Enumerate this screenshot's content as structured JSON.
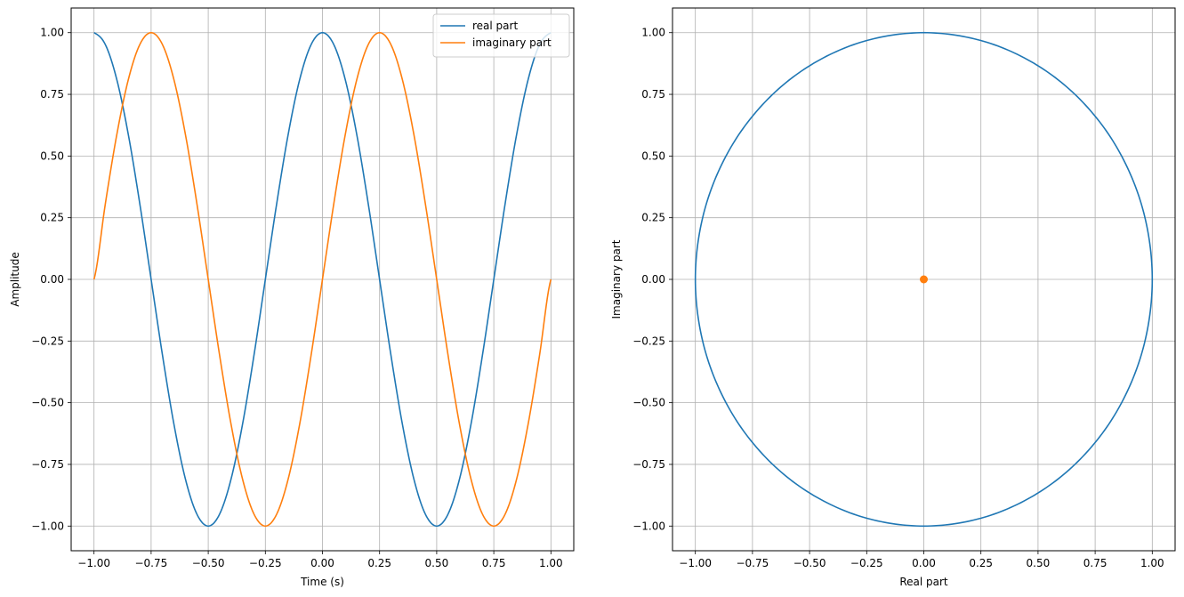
{
  "chart_data": [
    {
      "type": "line",
      "title": "",
      "xlabel": "Time (s)",
      "ylabel": "Amplitude",
      "xlim": [
        -1.1,
        1.1
      ],
      "ylim": [
        -1.1,
        1.1
      ],
      "grid": true,
      "legend_placement": "top-right",
      "xticks": [
        -1.0,
        -0.75,
        -0.5,
        -0.25,
        0.0,
        0.25,
        0.5,
        0.75,
        1.0
      ],
      "xtick_labels": [
        "−1.00",
        "−0.75",
        "−0.50",
        "−0.25",
        "0.00",
        "0.25",
        "0.50",
        "0.75",
        "1.00"
      ],
      "yticks": [
        -1.0,
        -0.75,
        -0.5,
        -0.25,
        0.0,
        0.25,
        0.5,
        0.75,
        1.0
      ],
      "ytick_labels": [
        "−1.00",
        "−0.75",
        "−0.50",
        "−0.25",
        "0.00",
        "0.25",
        "0.50",
        "0.75",
        "1.00"
      ],
      "x": [
        -1.0,
        -0.95,
        -0.9,
        -0.85,
        -0.8,
        -0.75,
        -0.7,
        -0.65,
        -0.6,
        -0.55,
        -0.5,
        -0.45,
        -0.4,
        -0.35,
        -0.3,
        -0.25,
        -0.2,
        -0.15,
        -0.1,
        -0.05,
        0.0,
        0.05,
        0.1,
        0.15,
        0.2,
        0.25,
        0.3,
        0.35,
        0.4,
        0.45,
        0.5,
        0.55,
        0.6,
        0.65,
        0.7,
        0.75,
        0.8,
        0.85,
        0.9,
        0.95,
        1.0
      ],
      "series": [
        {
          "name": "real part",
          "color": "#1f77b4",
          "values": [
            1.0,
            0.951,
            0.809,
            0.588,
            0.309,
            0.0,
            -0.309,
            -0.588,
            -0.809,
            -0.951,
            -1.0,
            -0.951,
            -0.809,
            -0.588,
            -0.309,
            0.0,
            0.309,
            0.588,
            0.809,
            0.951,
            1.0,
            0.951,
            0.809,
            0.588,
            0.309,
            0.0,
            -0.309,
            -0.588,
            -0.809,
            -0.951,
            -1.0,
            -0.951,
            -0.809,
            -0.588,
            -0.309,
            0.0,
            0.309,
            0.588,
            0.809,
            0.951,
            1.0
          ]
        },
        {
          "name": "imaginary part",
          "color": "#ff7f0e",
          "values": [
            0.0,
            0.309,
            0.588,
            0.809,
            0.951,
            1.0,
            0.951,
            0.809,
            0.588,
            0.309,
            0.0,
            -0.309,
            -0.588,
            -0.809,
            -0.951,
            -1.0,
            -0.951,
            -0.809,
            -0.588,
            -0.309,
            0.0,
            0.309,
            0.588,
            0.809,
            0.951,
            1.0,
            0.951,
            0.809,
            0.588,
            0.309,
            0.0,
            -0.309,
            -0.588,
            -0.809,
            -0.951,
            -1.0,
            -0.951,
            -0.809,
            -0.588,
            -0.309,
            0.0
          ]
        }
      ]
    },
    {
      "type": "scatter",
      "title": "",
      "xlabel": "Real part",
      "ylabel": "Imaginary part",
      "xlim": [
        -1.1,
        1.1
      ],
      "ylim": [
        -1.1,
        1.1
      ],
      "grid": true,
      "xticks": [
        -1.0,
        -0.75,
        -0.5,
        -0.25,
        0.0,
        0.25,
        0.5,
        0.75,
        1.0
      ],
      "xtick_labels": [
        "−1.00",
        "−0.75",
        "−0.50",
        "−0.25",
        "0.00",
        "0.25",
        "0.50",
        "0.75",
        "1.00"
      ],
      "yticks": [
        -1.0,
        -0.75,
        -0.5,
        -0.25,
        0.0,
        0.25,
        0.5,
        0.75,
        1.0
      ],
      "ytick_labels": [
        "−1.00",
        "−0.75",
        "−0.50",
        "−0.25",
        "0.00",
        "0.25",
        "0.50",
        "0.75",
        "1.00"
      ],
      "series": [
        {
          "color": "#1f77b4",
          "style": "line",
          "x": [
            1.0,
            0.951,
            0.809,
            0.588,
            0.309,
            0.0,
            -0.309,
            -0.588,
            -0.809,
            -0.951,
            -1.0,
            -0.951,
            -0.809,
            -0.588,
            -0.309,
            0.0,
            0.309,
            0.588,
            0.809,
            0.951,
            1.0
          ],
          "y": [
            0.0,
            0.309,
            0.588,
            0.809,
            0.951,
            1.0,
            0.951,
            0.809,
            0.588,
            0.309,
            0.0,
            -0.309,
            -0.588,
            -0.809,
            -0.951,
            -1.0,
            -0.951,
            -0.809,
            -0.588,
            -0.309,
            0.0
          ]
        },
        {
          "color": "#ff7f0e",
          "style": "marker",
          "x": [
            0.0
          ],
          "y": [
            0.0
          ]
        }
      ]
    }
  ]
}
